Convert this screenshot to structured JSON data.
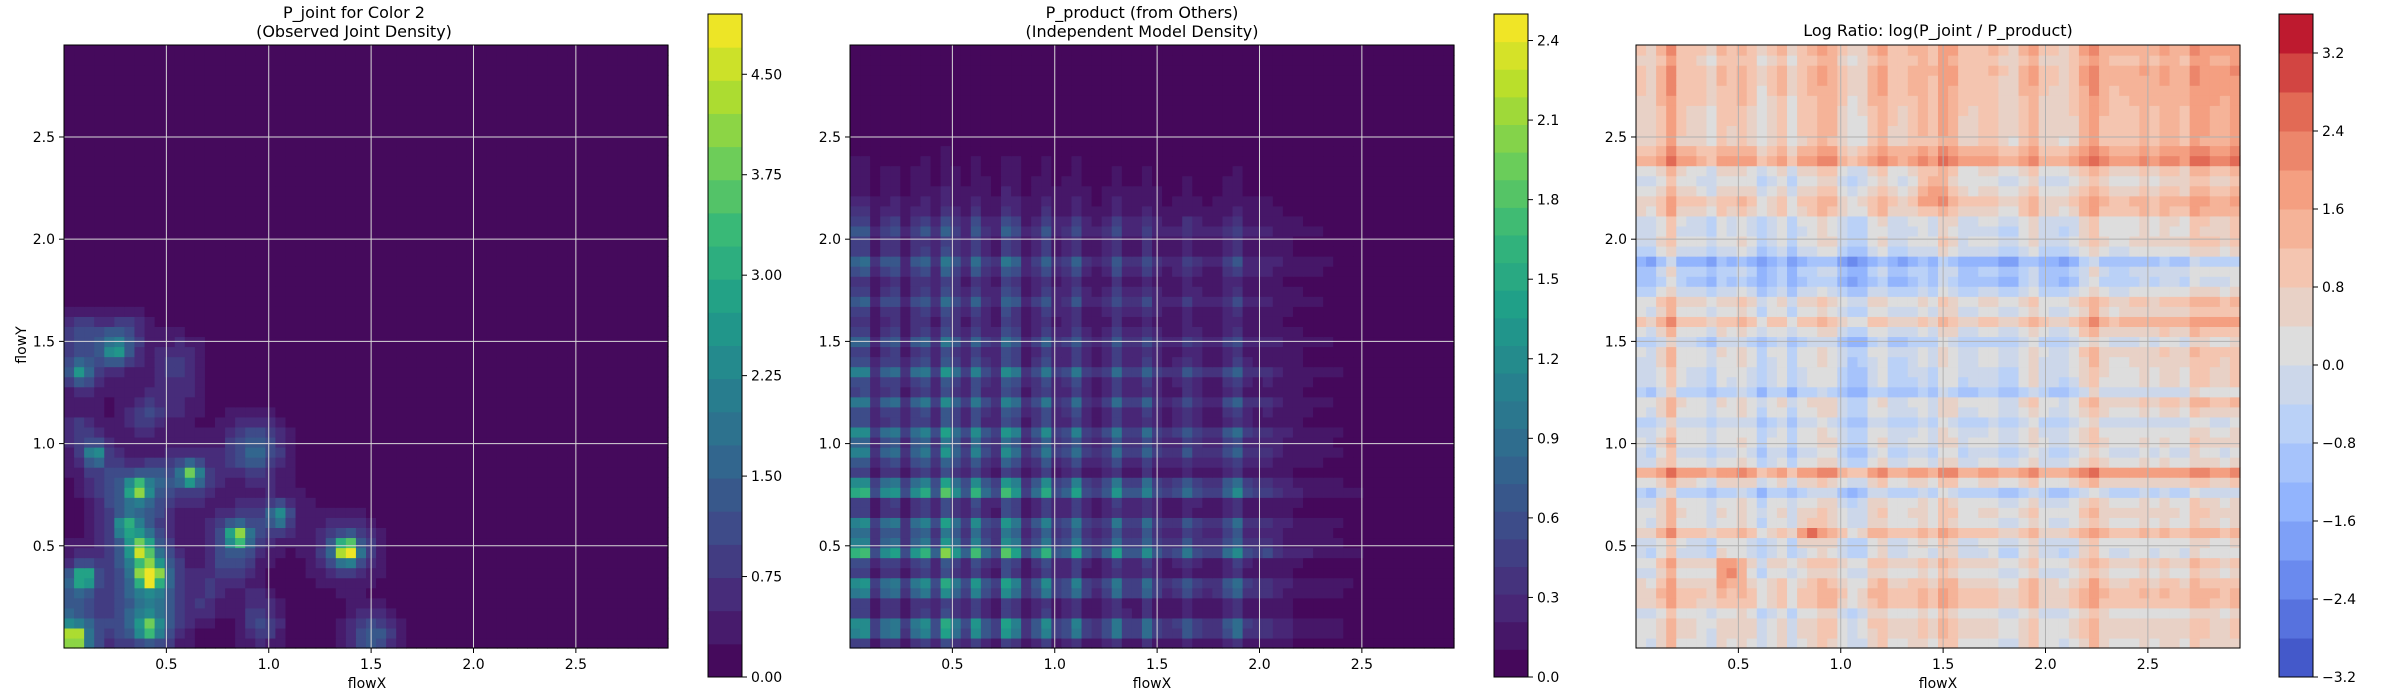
{
  "chart_data": [
    {
      "type": "heatmap",
      "title": "P_joint for Color 2\n(Observed Joint Density)",
      "xlabel": "flowX",
      "ylabel": "flowY",
      "xlim": [
        0.0,
        2.95
      ],
      "ylim": [
        0.0,
        2.95
      ],
      "x_ticks": [
        "0.5",
        "1.0",
        "1.5",
        "2.0",
        "2.5"
      ],
      "x_tick_values": [
        0.5,
        1.0,
        1.5,
        2.0,
        2.5
      ],
      "y_ticks": [
        "0.5",
        "1.0",
        "1.5",
        "2.0",
        "2.5"
      ],
      "y_tick_values": [
        0.5,
        1.0,
        1.5,
        2.0,
        2.5
      ],
      "grid": true,
      "colormap": "viridis",
      "colorbar": {
        "ticks": [
          "0.00",
          "0.75",
          "1.50",
          "2.25",
          "3.00",
          "3.75",
          "4.50"
        ],
        "tick_values": [
          0.0,
          0.75,
          1.5,
          2.25,
          3.0,
          3.75,
          4.5
        ],
        "range": [
          0.0,
          4.95
        ]
      },
      "hotspots": [
        {
          "x": 0.05,
          "y": 0.05,
          "value": 3.4
        },
        {
          "x": 0.42,
          "y": 0.36,
          "value": 4.9
        },
        {
          "x": 1.38,
          "y": 0.48,
          "value": 4.2
        },
        {
          "x": 0.85,
          "y": 0.55,
          "value": 3.2
        },
        {
          "x": 0.62,
          "y": 0.85,
          "value": 2.8
        },
        {
          "x": 0.36,
          "y": 0.78,
          "value": 2.6
        },
        {
          "x": 0.1,
          "y": 0.35,
          "value": 2.5
        },
        {
          "x": 0.38,
          "y": 0.48,
          "value": 2.6
        },
        {
          "x": 0.15,
          "y": 0.95,
          "value": 1.8
        },
        {
          "x": 0.08,
          "y": 1.35,
          "value": 1.6
        },
        {
          "x": 1.05,
          "y": 0.65,
          "value": 1.8
        },
        {
          "x": 0.42,
          "y": 0.1,
          "value": 2.2
        },
        {
          "x": 0.25,
          "y": 1.45,
          "value": 1.2
        },
        {
          "x": 0.3,
          "y": 0.6,
          "value": 1.7
        }
      ]
    },
    {
      "type": "heatmap",
      "title": "P_product (from Others)\n(Independent Model Density)",
      "xlabel": "flowX",
      "ylabel": "",
      "xlim": [
        0.0,
        2.95
      ],
      "ylim": [
        0.0,
        2.95
      ],
      "x_ticks": [
        "0.5",
        "1.0",
        "1.5",
        "2.0",
        "2.5"
      ],
      "x_tick_values": [
        0.5,
        1.0,
        1.5,
        2.0,
        2.5
      ],
      "y_ticks": [
        "0.5",
        "1.0",
        "1.5",
        "2.0",
        "2.5"
      ],
      "y_tick_values": [
        0.5,
        1.0,
        1.5,
        2.0,
        2.5
      ],
      "grid": true,
      "colormap": "viridis",
      "colorbar": {
        "ticks": [
          "0.0",
          "0.3",
          "0.6",
          "0.9",
          "1.2",
          "1.5",
          "1.8",
          "2.1",
          "2.4"
        ],
        "tick_values": [
          0.0,
          0.3,
          0.6,
          0.9,
          1.2,
          1.5,
          1.8,
          2.1,
          2.4
        ],
        "range": [
          0.0,
          2.5
        ]
      },
      "x_marginal_peaks": [
        {
          "x": 0.05,
          "w": 1.0
        },
        {
          "x": 0.2,
          "w": 0.7
        },
        {
          "x": 0.35,
          "w": 0.8
        },
        {
          "x": 0.48,
          "w": 1.0
        },
        {
          "x": 0.62,
          "w": 0.75
        },
        {
          "x": 0.78,
          "w": 1.0
        },
        {
          "x": 0.95,
          "w": 0.7
        },
        {
          "x": 1.1,
          "w": 0.6
        },
        {
          "x": 1.3,
          "w": 0.55
        },
        {
          "x": 1.45,
          "w": 0.45
        },
        {
          "x": 1.65,
          "w": 0.3
        },
        {
          "x": 1.88,
          "w": 0.5
        },
        {
          "x": 2.05,
          "w": 0.1
        },
        {
          "x": 2.3,
          "w": 0.05
        }
      ],
      "y_marginal_peaks": [
        {
          "y": 0.1,
          "w": 0.8
        },
        {
          "y": 0.3,
          "w": 0.75
        },
        {
          "y": 0.48,
          "w": 1.0
        },
        {
          "y": 0.6,
          "w": 0.6
        },
        {
          "y": 0.78,
          "w": 1.0
        },
        {
          "y": 0.95,
          "w": 0.5
        },
        {
          "y": 1.05,
          "w": 0.6
        },
        {
          "y": 1.2,
          "w": 0.45
        },
        {
          "y": 1.35,
          "w": 0.5
        },
        {
          "y": 1.5,
          "w": 0.3
        },
        {
          "y": 1.7,
          "w": 0.25
        },
        {
          "y": 1.88,
          "w": 0.35
        },
        {
          "y": 2.05,
          "w": 0.2
        }
      ]
    },
    {
      "type": "heatmap",
      "title": "Log Ratio: log(P_joint / P_product)",
      "xlabel": "flowX",
      "ylabel": "",
      "xlim": [
        0.0,
        2.95
      ],
      "ylim": [
        0.0,
        2.95
      ],
      "x_ticks": [
        "0.5",
        "1.0",
        "1.5",
        "2.0",
        "2.5"
      ],
      "x_tick_values": [
        0.5,
        1.0,
        1.5,
        2.0,
        2.5
      ],
      "y_ticks": [
        "0.5",
        "1.0",
        "1.5",
        "2.0",
        "2.5"
      ],
      "y_tick_values": [
        0.5,
        1.0,
        1.5,
        2.0,
        2.5
      ],
      "grid": true,
      "colormap": "coolwarm",
      "colorbar": {
        "ticks": [
          "−3.2",
          "−2.4",
          "−1.6",
          "−0.8",
          "0.0",
          "0.8",
          "1.6",
          "2.4",
          "3.2"
        ],
        "tick_values": [
          -3.2,
          -2.4,
          -1.6,
          -0.8,
          0.0,
          0.8,
          1.6,
          2.4,
          3.2
        ],
        "range": [
          -3.2,
          3.6
        ]
      }
    }
  ]
}
